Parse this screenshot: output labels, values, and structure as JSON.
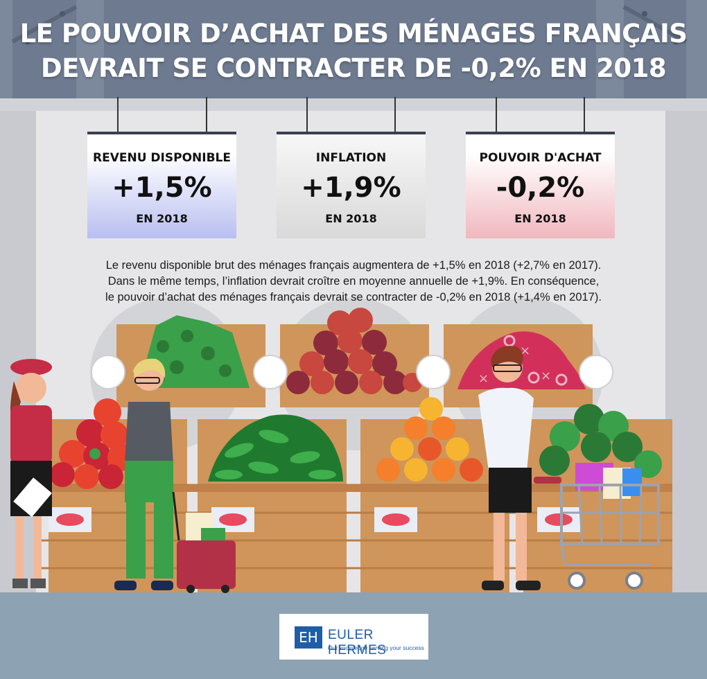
{
  "header": {
    "title_line1": "LE POUVOIR D’ACHAT DES MÉNAGES FRANÇAIS",
    "title_line2": "DEVRAIT SE CONTRACTER DE -0,2% EN 2018"
  },
  "cards": [
    {
      "label": "REVENU DISPONIBLE",
      "value": "+1,5%",
      "year": "EN 2018",
      "color": "#b8bff0"
    },
    {
      "label": "INFLATION",
      "value": "+1,9%",
      "year": "EN 2018",
      "color": "#d9d9d9"
    },
    {
      "label": "POUVOIR D'ACHAT",
      "value": "-0,2%",
      "year": "EN 2018",
      "color": "#f0b8bf"
    }
  ],
  "description": {
    "line1": "Le revenu disponible brut des ménages français augmentera de +1,5% en 2018 (+2,7% en 2017).",
    "line2": "Dans le même temps, l’inflation devrait croître en moyenne annuelle de +1,9%. En conséquence,",
    "line3": "le pouvoir d’achat des ménages français devrait se contracter de -0,2% en 2018 (+1,4% en 2017)."
  },
  "logo": {
    "mark": "EH",
    "name": "EULER HERMES",
    "tagline": "Our knowledge serving your success"
  },
  "colors": {
    "header_bg": "#6d7a90",
    "wall": "#e6e6e8",
    "crate": "#cf955a",
    "floor_band": "#8da2b2",
    "brand_blue": "#1f5da8"
  },
  "icons": [
    "vegetable-crate-icons",
    "shopper-icons",
    "shopping-cart-icon",
    "shopping-basket-icon"
  ]
}
